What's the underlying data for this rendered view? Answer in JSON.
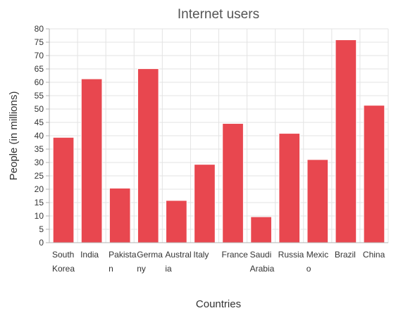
{
  "chart_data": {
    "type": "bar",
    "title": "Internet users",
    "xlabel": "Countries",
    "ylabel": "People (in millions)",
    "ylim": [
      0,
      80
    ],
    "ytick_step": 5,
    "grid": true,
    "legend": "none",
    "bar_color": "#e8474f",
    "categories": [
      [
        "South",
        "Korea"
      ],
      [
        "India"
      ],
      [
        "Pakista",
        "n"
      ],
      [
        "Germa",
        "ny"
      ],
      [
        "Austral",
        "ia"
      ],
      [
        "Italy"
      ],
      [
        "France"
      ],
      [
        "Saudi",
        "Arabia"
      ],
      [
        "Russia"
      ],
      [
        "Mexic",
        "o"
      ],
      [
        "Brazil"
      ],
      [
        "China"
      ]
    ],
    "values": [
      39.4,
      61.3,
      20.4,
      65.1,
      15.8,
      29.3,
      44.6,
      9.7,
      40.9,
      31.1,
      75.9,
      51.4
    ]
  }
}
